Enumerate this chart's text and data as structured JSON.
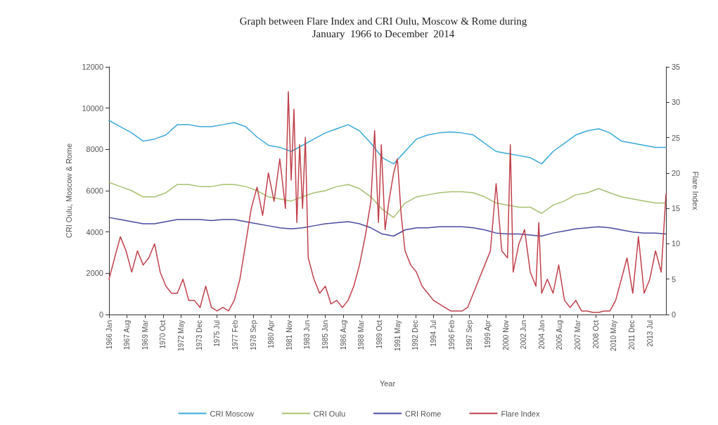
{
  "chart_data": {
    "type": "line",
    "title": "Graph between Flare Index and CRI Oulu, Moscow & Rome during\nJanuary  1966 to December  2014",
    "xlabel": "Year",
    "ylabel": "CRI Oulu, Moscow & Rome",
    "y2label": "Flare Index",
    "x": [
      "1966-01",
      "1967-01",
      "1968-01",
      "1969-01",
      "1970-01",
      "1971-01",
      "1972-01",
      "1973-01",
      "1974-01",
      "1975-01",
      "1976-01",
      "1977-01",
      "1978-01",
      "1979-01",
      "1980-01",
      "1981-01",
      "1982-01",
      "1983-01",
      "1984-01",
      "1985-01",
      "1986-01",
      "1987-01",
      "1988-01",
      "1989-01",
      "1990-01",
      "1991-01",
      "1992-01",
      "1993-01",
      "1994-01",
      "1995-01",
      "1996-01",
      "1997-01",
      "1998-01",
      "1999-01",
      "2000-01",
      "2001-01",
      "2002-01",
      "2003-01",
      "2004-01",
      "2005-01",
      "2006-01",
      "2007-01",
      "2008-01",
      "2009-01",
      "2010-01",
      "2011-01",
      "2012-01",
      "2013-01",
      "2014-01",
      "2014-12"
    ],
    "series": [
      {
        "name": "CRI Moscow",
        "color": "#3aa8d8",
        "values": [
          9400,
          9100,
          8800,
          8400,
          8500,
          8700,
          9200,
          9200,
          9100,
          9100,
          9200,
          9300,
          9100,
          8600,
          8200,
          8100,
          7900,
          8200,
          8500,
          8800,
          9000,
          9200,
          8900,
          8300,
          7600,
          7300,
          7900,
          8500,
          8700,
          8800,
          8850,
          8800,
          8700,
          8300,
          7900,
          7800,
          7700,
          7600,
          7300,
          7900,
          8300,
          8700,
          8900,
          9000,
          8800,
          8400,
          8300,
          8200,
          8100,
          8100
        ]
      },
      {
        "name": "CRI Oulu",
        "color": "#a8c070",
        "values": [
          6400,
          6200,
          6000,
          5700,
          5700,
          5900,
          6300,
          6300,
          6200,
          6200,
          6300,
          6300,
          6200,
          6000,
          5700,
          5600,
          5500,
          5700,
          5900,
          6000,
          6200,
          6300,
          6100,
          5700,
          5100,
          4700,
          5400,
          5700,
          5800,
          5900,
          5950,
          5950,
          5900,
          5700,
          5400,
          5300,
          5200,
          5200,
          4900,
          5300,
          5500,
          5800,
          5900,
          6100,
          5900,
          5700,
          5600,
          5500,
          5400,
          5400
        ]
      },
      {
        "name": "CRI Rome",
        "color": "#4a4aa0",
        "values": [
          4700,
          4600,
          4500,
          4400,
          4400,
          4500,
          4600,
          4600,
          4600,
          4550,
          4600,
          4600,
          4500,
          4400,
          4300,
          4200,
          4150,
          4200,
          4300,
          4400,
          4450,
          4500,
          4400,
          4200,
          3900,
          3800,
          4100,
          4200,
          4200,
          4250,
          4250,
          4250,
          4200,
          4100,
          3950,
          3900,
          3900,
          3850,
          3800,
          3950,
          4050,
          4150,
          4200,
          4250,
          4200,
          4100,
          4000,
          3950,
          3950,
          3900
        ]
      },
      {
        "name": "Flare Index",
        "color": "#c0404a",
        "axis": "y2",
        "x": [
          "1966-01",
          "1966-07",
          "1967-01",
          "1967-07",
          "1968-01",
          "1968-07",
          "1969-01",
          "1969-07",
          "1970-01",
          "1970-07",
          "1971-01",
          "1971-07",
          "1972-01",
          "1972-07",
          "1973-01",
          "1973-07",
          "1974-01",
          "1974-07",
          "1975-01",
          "1975-07",
          "1976-01",
          "1976-07",
          "1977-01",
          "1977-07",
          "1978-01",
          "1978-07",
          "1979-01",
          "1979-07",
          "1980-01",
          "1980-07",
          "1981-01",
          "1981-07",
          "1981-10",
          "1982-01",
          "1982-04",
          "1982-07",
          "1982-10",
          "1983-01",
          "1983-04",
          "1983-07",
          "1984-01",
          "1984-07",
          "1985-01",
          "1985-07",
          "1986-01",
          "1986-07",
          "1987-01",
          "1987-07",
          "1988-01",
          "1988-07",
          "1989-01",
          "1989-05",
          "1989-09",
          "1989-12",
          "1990-04",
          "1990-08",
          "1991-01",
          "1991-05",
          "1991-09",
          "1992-01",
          "1992-07",
          "1993-01",
          "1993-07",
          "1994-01",
          "1994-07",
          "1995-01",
          "1995-07",
          "1996-01",
          "1996-07",
          "1997-01",
          "1997-07",
          "1998-01",
          "1998-07",
          "1999-01",
          "1999-07",
          "2000-01",
          "2000-07",
          "2001-01",
          "2001-04",
          "2001-07",
          "2002-01",
          "2002-07",
          "2003-01",
          "2003-07",
          "2003-10",
          "2004-01",
          "2004-07",
          "2005-01",
          "2005-07",
          "2006-01",
          "2006-07",
          "2007-01",
          "2007-07",
          "2008-01",
          "2008-07",
          "2009-01",
          "2009-07",
          "2010-01",
          "2010-07",
          "2011-01",
          "2011-07",
          "2012-01",
          "2012-07",
          "2013-01",
          "2013-07",
          "2014-01",
          "2014-07",
          "2014-12"
        ],
        "values": [
          5,
          8,
          11,
          9,
          6,
          9,
          7,
          8,
          10,
          6,
          4,
          3,
          3,
          5,
          2,
          2,
          1,
          4,
          1,
          0.5,
          1,
          0.5,
          2,
          5,
          10,
          15,
          18,
          14,
          20,
          16,
          22,
          15,
          31.5,
          19,
          29,
          13,
          24,
          15,
          25,
          8,
          5,
          3,
          4,
          1.5,
          2,
          1,
          2,
          4,
          7,
          11,
          16,
          26,
          13,
          24,
          12,
          16,
          20,
          22,
          14,
          9,
          7,
          6,
          4,
          3,
          2,
          1.5,
          1,
          0.5,
          0.5,
          0.5,
          1,
          3,
          5,
          7,
          9,
          18.5,
          9,
          8,
          24,
          6,
          10,
          12,
          6,
          4,
          13,
          3,
          5,
          3,
          7,
          2,
          1,
          2,
          0.5,
          0.5,
          0.3,
          0.3,
          0.5,
          0.5,
          2,
          5,
          8,
          3,
          11,
          3,
          5,
          9,
          6,
          17
        ]
      }
    ],
    "xlim": [
      "1966-01",
      "2014-12"
    ],
    "xticks": [
      {
        "value": "1966-01",
        "label": "1966 Jan"
      },
      {
        "value": "1967-08",
        "label": "1967 Aug"
      },
      {
        "value": "1969-03",
        "label": "1969 Mar"
      },
      {
        "value": "1970-10",
        "label": "1970 Oct"
      },
      {
        "value": "1972-05",
        "label": "1972 May"
      },
      {
        "value": "1973-12",
        "label": "1973 Dec"
      },
      {
        "value": "1975-07",
        "label": "1975 Jul"
      },
      {
        "value": "1977-02",
        "label": "1977 Feb"
      },
      {
        "value": "1978-09",
        "label": "1978 Sep"
      },
      {
        "value": "1980-04",
        "label": "1980 Apr"
      },
      {
        "value": "1981-11",
        "label": "1981 Nov"
      },
      {
        "value": "1983-06",
        "label": "1983 Jun"
      },
      {
        "value": "1985-01",
        "label": "1985 Jan"
      },
      {
        "value": "1986-08",
        "label": "1986 Aug"
      },
      {
        "value": "1988-03",
        "label": "1988 Mar"
      },
      {
        "value": "1989-10",
        "label": "1989 Oct"
      },
      {
        "value": "1991-05",
        "label": "1991 May"
      },
      {
        "value": "1992-12",
        "label": "1992 Dec"
      },
      {
        "value": "1994-07",
        "label": "1994 Jul"
      },
      {
        "value": "1996-02",
        "label": "1996 Feb"
      },
      {
        "value": "1997-09",
        "label": "1997 Sep"
      },
      {
        "value": "1999-04",
        "label": "1999 Apr"
      },
      {
        "value": "2000-11",
        "label": "2000 Nov"
      },
      {
        "value": "2002-06",
        "label": "2002 Jun"
      },
      {
        "value": "2004-01",
        "label": "2004 Jan"
      },
      {
        "value": "2005-08",
        "label": "2005 Aug"
      },
      {
        "value": "2007-03",
        "label": "2007 Mar"
      },
      {
        "value": "2008-10",
        "label": "2008 Oct"
      },
      {
        "value": "2010-05",
        "label": "2010 May"
      },
      {
        "value": "2011-12",
        "label": "2011 Dec"
      },
      {
        "value": "2013-07",
        "label": "2013 Jul"
      }
    ],
    "ylim": [
      0,
      12000
    ],
    "yticks": [
      0,
      2000,
      4000,
      6000,
      8000,
      10000,
      12000
    ],
    "y2lim": [
      0,
      35
    ],
    "y2ticks": [
      0,
      5,
      10,
      15,
      20,
      25,
      30,
      35
    ],
    "grid": false,
    "legend": "bottom",
    "marker": "none",
    "line_style": "solid"
  }
}
